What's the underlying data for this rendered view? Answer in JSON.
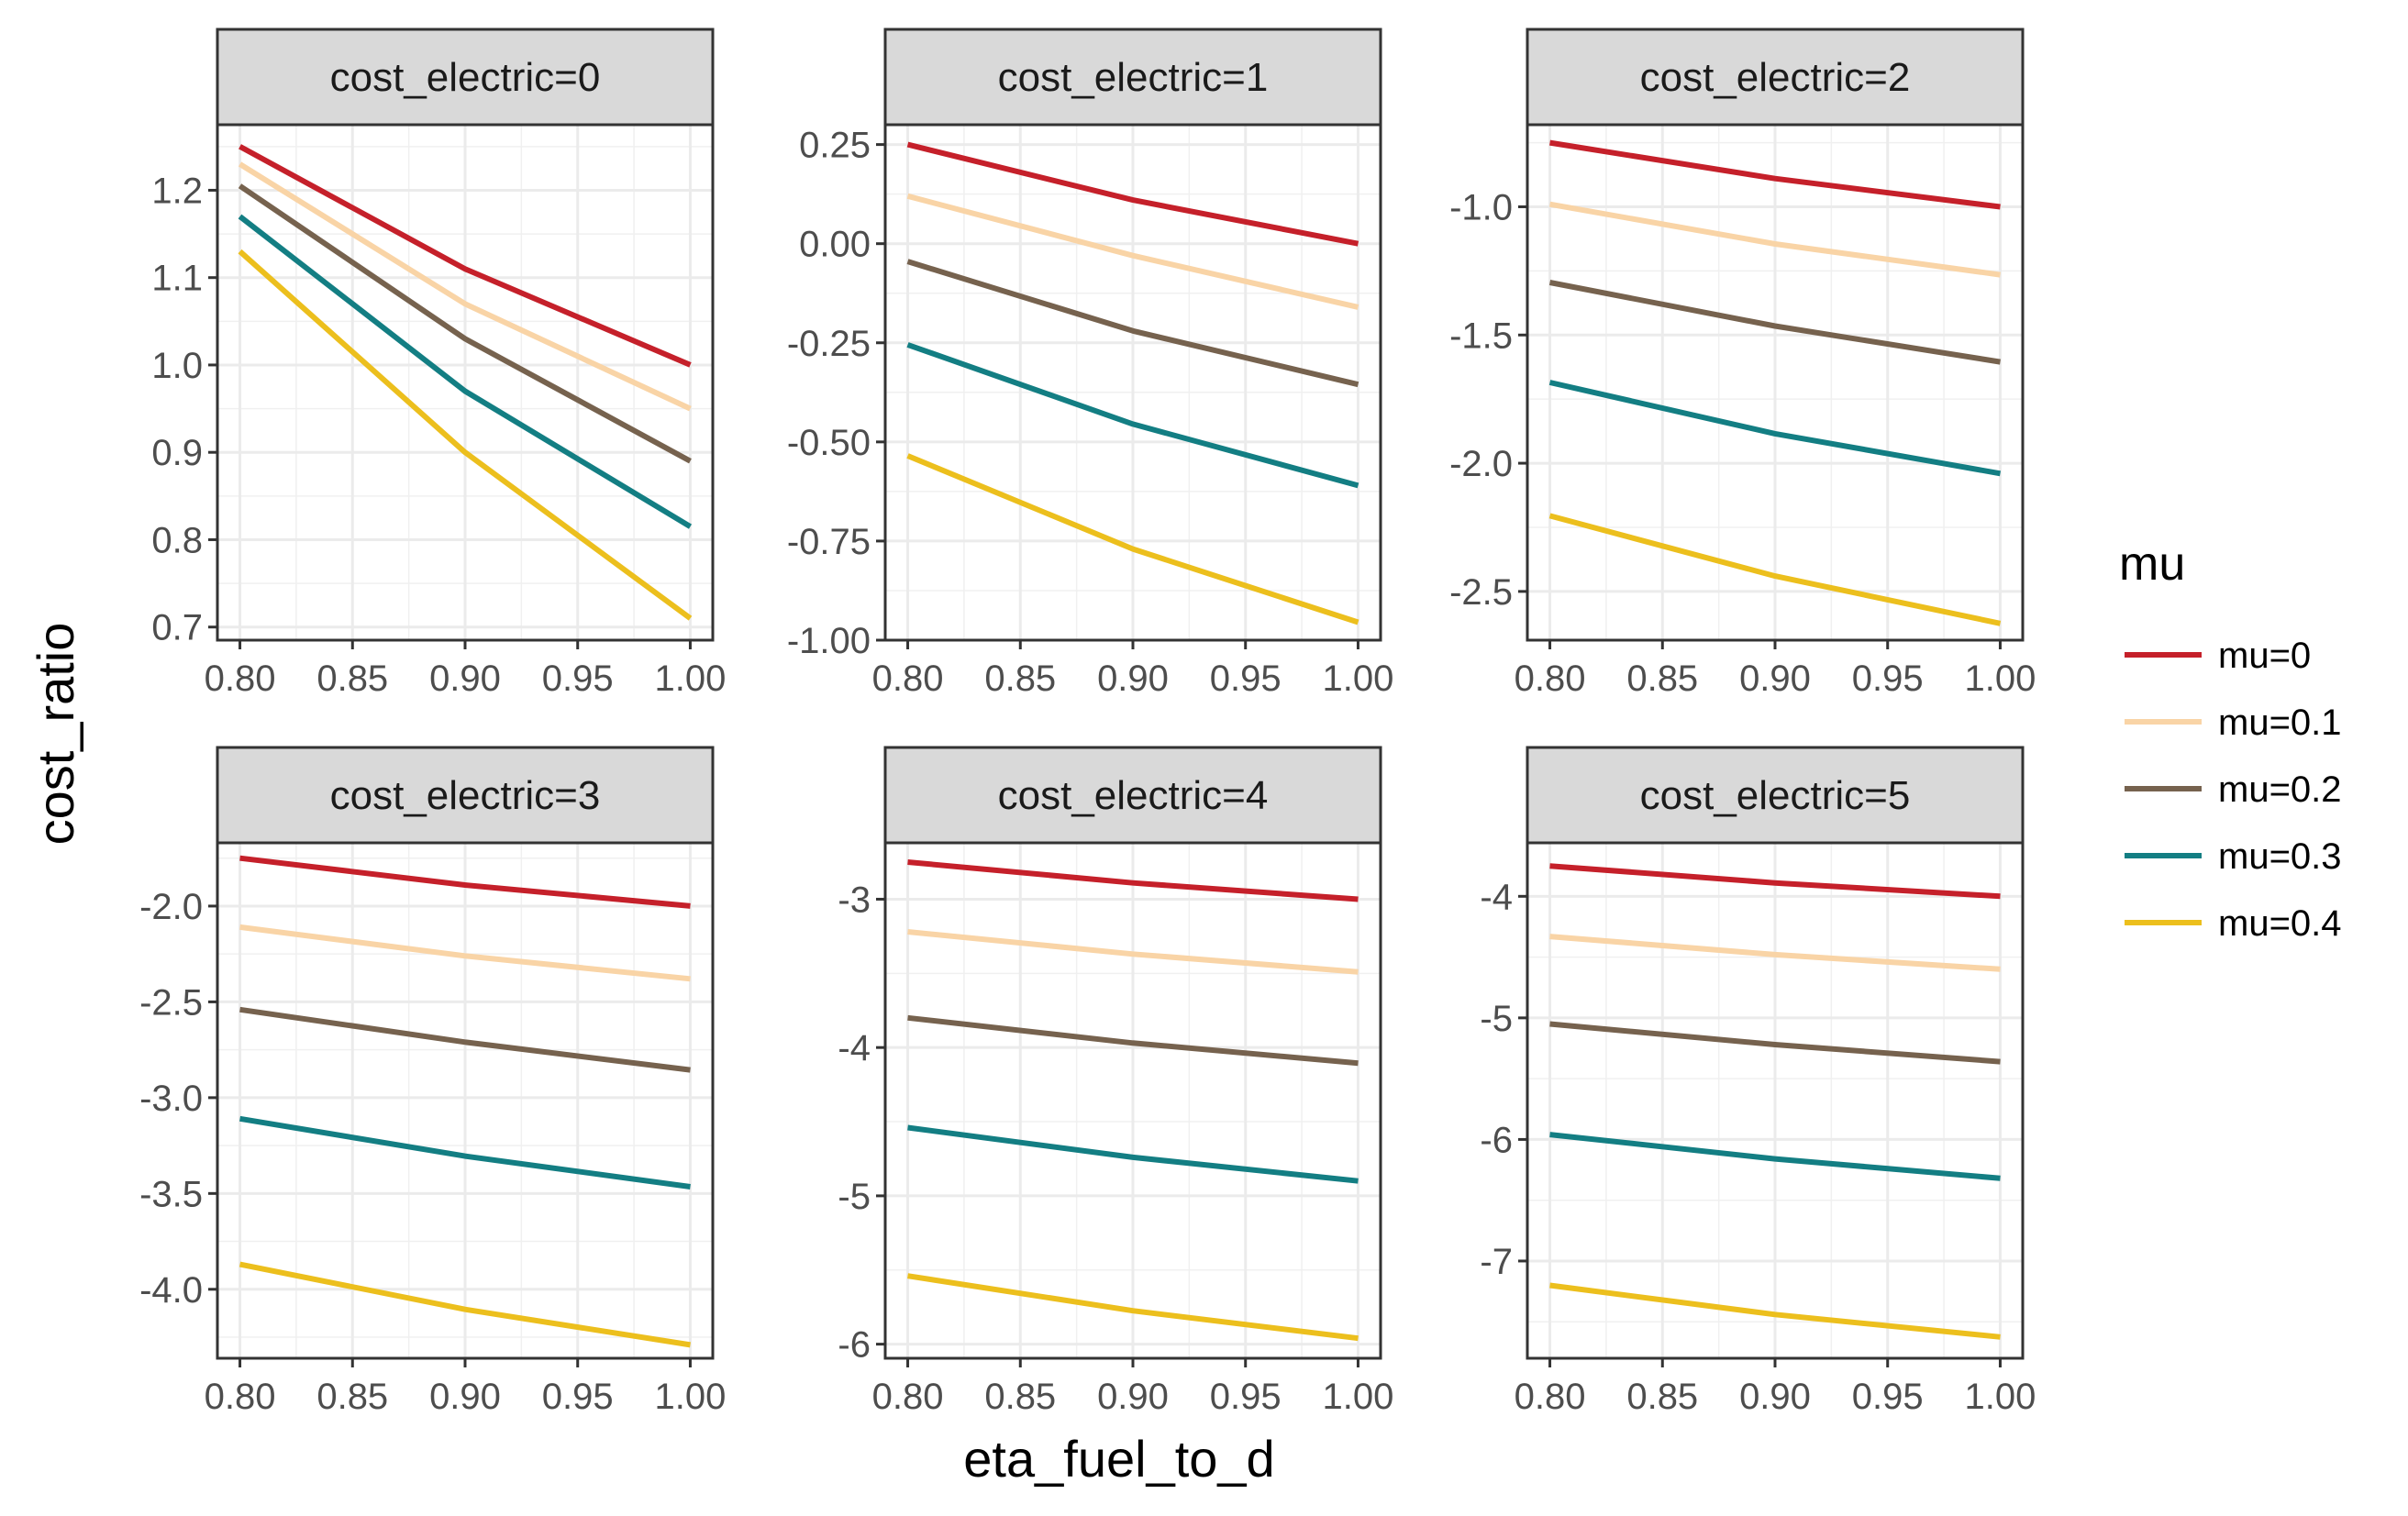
{
  "chart_data": {
    "type": "line",
    "layout": "faceted",
    "xlabel": "eta_fuel_to_d",
    "ylabel": "cost_ratio",
    "x": [
      0.8,
      0.9,
      1.0
    ],
    "xticks": [
      "0.80",
      "0.85",
      "0.90",
      "0.95",
      "1.00"
    ],
    "xlim": [
      0.79,
      1.01
    ],
    "grid": true,
    "legend": {
      "title": "mu",
      "position": "right",
      "entries": [
        "mu=0",
        "mu=0.1",
        "mu=0.2",
        "mu=0.3",
        "mu=0.4"
      ],
      "colors": [
        "#c5202a",
        "#f9d4a6",
        "#76624e",
        "#137e83",
        "#ecbf1d"
      ]
    },
    "facets": [
      {
        "label": "cost_electric=0",
        "ylim": [
          0.685,
          1.275
        ],
        "yticks": [
          0.7,
          0.8,
          0.9,
          1.0,
          1.1,
          1.2
        ],
        "ytick_labels": [
          "0.7",
          "0.8",
          "0.9",
          "1.0",
          "1.1",
          "1.2"
        ],
        "series": [
          {
            "name": "mu=0",
            "values": [
              1.25,
              1.11,
              1.0
            ]
          },
          {
            "name": "mu=0.1",
            "values": [
              1.23,
              1.07,
              0.95
            ]
          },
          {
            "name": "mu=0.2",
            "values": [
              1.205,
              1.03,
              0.89
            ]
          },
          {
            "name": "mu=0.3",
            "values": [
              1.17,
              0.97,
              0.815
            ]
          },
          {
            "name": "mu=0.4",
            "values": [
              1.13,
              0.9,
              0.71
            ]
          }
        ]
      },
      {
        "label": "cost_electric=1",
        "ylim": [
          -1.0,
          0.3
        ],
        "yticks": [
          -1.0,
          -0.75,
          -0.5,
          -0.25,
          0.0,
          0.25
        ],
        "ytick_labels": [
          "-1.00",
          "-0.75",
          "-0.50",
          "-0.25",
          "0.00",
          "0.25"
        ],
        "series": [
          {
            "name": "mu=0",
            "values": [
              0.25,
              0.11,
              0.0
            ]
          },
          {
            "name": "mu=0.1",
            "values": [
              0.12,
              -0.03,
              -0.16
            ]
          },
          {
            "name": "mu=0.2",
            "values": [
              -0.045,
              -0.22,
              -0.355
            ]
          },
          {
            "name": "mu=0.3",
            "values": [
              -0.255,
              -0.455,
              -0.61
            ]
          },
          {
            "name": "mu=0.4",
            "values": [
              -0.535,
              -0.77,
              -0.955
            ]
          }
        ]
      },
      {
        "label": "cost_electric=2",
        "ylim": [
          -2.69,
          -0.68
        ],
        "yticks": [
          -2.5,
          -2.0,
          -1.5,
          -1.0
        ],
        "ytick_labels": [
          "-2.5",
          "-2.0",
          "-1.5",
          "-1.0"
        ],
        "series": [
          {
            "name": "mu=0",
            "values": [
              -0.75,
              -0.89,
              -1.0
            ]
          },
          {
            "name": "mu=0.1",
            "values": [
              -0.99,
              -1.145,
              -1.265
            ]
          },
          {
            "name": "mu=0.2",
            "values": [
              -1.295,
              -1.465,
              -1.605
            ]
          },
          {
            "name": "mu=0.3",
            "values": [
              -1.685,
              -1.885,
              -2.04
            ]
          },
          {
            "name": "mu=0.4",
            "values": [
              -2.205,
              -2.44,
              -2.625
            ]
          }
        ]
      },
      {
        "label": "cost_electric=3",
        "ylim": [
          -4.36,
          -1.67
        ],
        "yticks": [
          -4.0,
          -3.5,
          -3.0,
          -2.5,
          -2.0
        ],
        "ytick_labels": [
          "-4.0",
          "-3.5",
          "-3.0",
          "-2.5",
          "-2.0"
        ],
        "series": [
          {
            "name": "mu=0",
            "values": [
              -1.75,
              -1.89,
              -2.0
            ]
          },
          {
            "name": "mu=0.1",
            "values": [
              -2.11,
              -2.26,
              -2.38
            ]
          },
          {
            "name": "mu=0.2",
            "values": [
              -2.54,
              -2.71,
              -2.855
            ]
          },
          {
            "name": "mu=0.3",
            "values": [
              -3.11,
              -3.305,
              -3.465
            ]
          },
          {
            "name": "mu=0.4",
            "values": [
              -3.87,
              -4.105,
              -4.29
            ]
          }
        ]
      },
      {
        "label": "cost_electric=4",
        "ylim": [
          -6.095,
          -2.62
        ],
        "yticks": [
          -6,
          -5,
          -4,
          -3
        ],
        "ytick_labels": [
          "-6",
          "-5",
          "-4",
          "-3"
        ],
        "series": [
          {
            "name": "mu=0",
            "values": [
              -2.75,
              -2.89,
              -3.0
            ]
          },
          {
            "name": "mu=0.1",
            "values": [
              -3.22,
              -3.37,
              -3.49
            ]
          },
          {
            "name": "mu=0.2",
            "values": [
              -3.8,
              -3.97,
              -4.105
            ]
          },
          {
            "name": "mu=0.3",
            "values": [
              -4.54,
              -4.74,
              -4.9
            ]
          },
          {
            "name": "mu=0.4",
            "values": [
              -5.54,
              -5.775,
              -5.96
            ]
          }
        ]
      },
      {
        "label": "cost_electric=5",
        "ylim": [
          -7.8,
          -3.56
        ],
        "yticks": [
          -7,
          -6,
          -5,
          -4
        ],
        "ytick_labels": [
          "-7",
          "-6",
          "-5",
          "-4"
        ],
        "series": [
          {
            "name": "mu=0",
            "values": [
              -3.75,
              -3.89,
              -4.0
            ]
          },
          {
            "name": "mu=0.1",
            "values": [
              -4.33,
              -4.48,
              -4.6
            ]
          },
          {
            "name": "mu=0.2",
            "values": [
              -5.05,
              -5.22,
              -5.36
            ]
          },
          {
            "name": "mu=0.3",
            "values": [
              -5.96,
              -6.16,
              -6.32
            ]
          },
          {
            "name": "mu=0.4",
            "values": [
              -7.2,
              -7.44,
              -7.625
            ]
          }
        ]
      }
    ]
  }
}
